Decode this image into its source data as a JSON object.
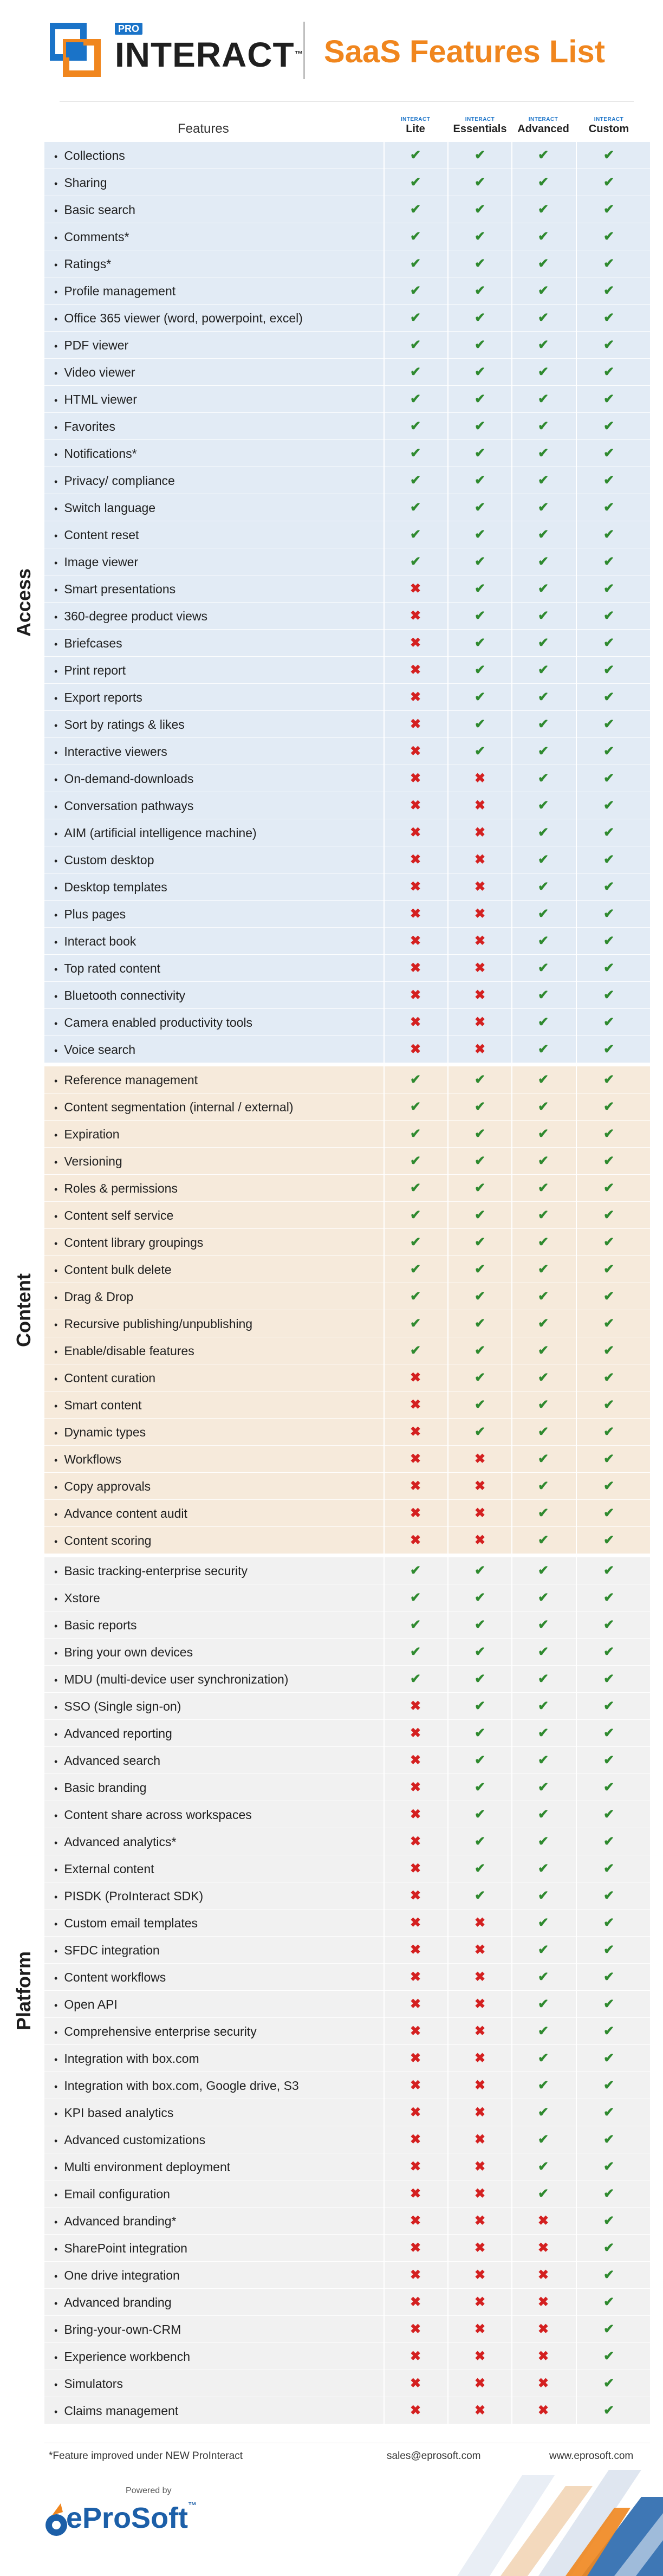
{
  "header": {
    "logo_badge": "PRO",
    "logo_text": "INTERACT",
    "logo_tm": "™",
    "title": "SaaS Features List"
  },
  "table": {
    "features_label": "Features",
    "tiers": [
      {
        "mini": "INTERACT",
        "name": "Lite"
      },
      {
        "mini": "INTERACT",
        "name": "Essentials"
      },
      {
        "mini": "INTERACT",
        "name": "Advanced"
      },
      {
        "mini": "INTERACT",
        "name": "Custom"
      }
    ],
    "marks": {
      "yes": "✔",
      "no": "✖"
    }
  },
  "sections": [
    {
      "label": "Access",
      "bg": "#e2ebf5",
      "rows": [
        {
          "f": "Collections",
          "v": [
            1,
            1,
            1,
            1
          ]
        },
        {
          "f": "Sharing",
          "v": [
            1,
            1,
            1,
            1
          ]
        },
        {
          "f": "Basic search",
          "v": [
            1,
            1,
            1,
            1
          ]
        },
        {
          "f": "Comments*",
          "v": [
            1,
            1,
            1,
            1
          ]
        },
        {
          "f": "Ratings*",
          "v": [
            1,
            1,
            1,
            1
          ]
        },
        {
          "f": "Profile management",
          "v": [
            1,
            1,
            1,
            1
          ]
        },
        {
          "f": "Office 365 viewer (word, powerpoint, excel)",
          "v": [
            1,
            1,
            1,
            1
          ]
        },
        {
          "f": "PDF viewer",
          "v": [
            1,
            1,
            1,
            1
          ]
        },
        {
          "f": "Video viewer",
          "v": [
            1,
            1,
            1,
            1
          ]
        },
        {
          "f": "HTML viewer",
          "v": [
            1,
            1,
            1,
            1
          ]
        },
        {
          "f": "Favorites",
          "v": [
            1,
            1,
            1,
            1
          ]
        },
        {
          "f": "Notifications*",
          "v": [
            1,
            1,
            1,
            1
          ]
        },
        {
          "f": "Privacy/ compliance",
          "v": [
            1,
            1,
            1,
            1
          ]
        },
        {
          "f": "Switch language",
          "v": [
            1,
            1,
            1,
            1
          ]
        },
        {
          "f": "Content reset",
          "v": [
            1,
            1,
            1,
            1
          ]
        },
        {
          "f": "Image viewer",
          "v": [
            1,
            1,
            1,
            1
          ]
        },
        {
          "f": "Smart presentations",
          "v": [
            0,
            1,
            1,
            1
          ]
        },
        {
          "f": "360-degree product views",
          "v": [
            0,
            1,
            1,
            1
          ]
        },
        {
          "f": "Briefcases",
          "v": [
            0,
            1,
            1,
            1
          ]
        },
        {
          "f": "Print report",
          "v": [
            0,
            1,
            1,
            1
          ]
        },
        {
          "f": "Export reports",
          "v": [
            0,
            1,
            1,
            1
          ]
        },
        {
          "f": "Sort by ratings & likes",
          "v": [
            0,
            1,
            1,
            1
          ]
        },
        {
          "f": "Interactive viewers",
          "v": [
            0,
            1,
            1,
            1
          ]
        },
        {
          "f": "On-demand-downloads",
          "v": [
            0,
            0,
            1,
            1
          ]
        },
        {
          "f": "Conversation pathways",
          "v": [
            0,
            0,
            1,
            1
          ]
        },
        {
          "f": "AIM (artificial intelligence machine)",
          "v": [
            0,
            0,
            1,
            1
          ]
        },
        {
          "f": "Custom desktop",
          "v": [
            0,
            0,
            1,
            1
          ]
        },
        {
          "f": "Desktop templates",
          "v": [
            0,
            0,
            1,
            1
          ]
        },
        {
          "f": "Plus pages",
          "v": [
            0,
            0,
            1,
            1
          ]
        },
        {
          "f": "Interact book",
          "v": [
            0,
            0,
            1,
            1
          ]
        },
        {
          "f": "Top rated content",
          "v": [
            0,
            0,
            1,
            1
          ]
        },
        {
          "f": "Bluetooth connectivity",
          "v": [
            0,
            0,
            1,
            1
          ]
        },
        {
          "f": "Camera enabled productivity tools",
          "v": [
            0,
            0,
            1,
            1
          ]
        },
        {
          "f": "Voice search",
          "v": [
            0,
            0,
            1,
            1
          ]
        }
      ]
    },
    {
      "label": "Content",
      "bg": "#f6eadb",
      "rows": [
        {
          "f": "Reference management",
          "v": [
            1,
            1,
            1,
            1
          ]
        },
        {
          "f": "Content segmentation (internal / external)",
          "v": [
            1,
            1,
            1,
            1
          ]
        },
        {
          "f": "Expiration",
          "v": [
            1,
            1,
            1,
            1
          ]
        },
        {
          "f": "Versioning",
          "v": [
            1,
            1,
            1,
            1
          ]
        },
        {
          "f": "Roles & permissions",
          "v": [
            1,
            1,
            1,
            1
          ]
        },
        {
          "f": "Content self service",
          "v": [
            1,
            1,
            1,
            1
          ]
        },
        {
          "f": "Content library groupings",
          "v": [
            1,
            1,
            1,
            1
          ]
        },
        {
          "f": "Content bulk delete",
          "v": [
            1,
            1,
            1,
            1
          ]
        },
        {
          "f": "Drag & Drop",
          "v": [
            1,
            1,
            1,
            1
          ]
        },
        {
          "f": "Recursive publishing/unpublishing",
          "v": [
            1,
            1,
            1,
            1
          ]
        },
        {
          "f": "Enable/disable features",
          "v": [
            1,
            1,
            1,
            1
          ]
        },
        {
          "f": "Content curation",
          "v": [
            0,
            1,
            1,
            1
          ]
        },
        {
          "f": "Smart content",
          "v": [
            0,
            1,
            1,
            1
          ]
        },
        {
          "f": "Dynamic types",
          "v": [
            0,
            1,
            1,
            1
          ]
        },
        {
          "f": "Workflows",
          "v": [
            0,
            0,
            1,
            1
          ]
        },
        {
          "f": "Copy approvals",
          "v": [
            0,
            0,
            1,
            1
          ]
        },
        {
          "f": "Advance content audit",
          "v": [
            0,
            0,
            1,
            1
          ]
        },
        {
          "f": "Content scoring",
          "v": [
            0,
            0,
            1,
            1
          ]
        }
      ]
    },
    {
      "label": "Platform",
      "bg": "#f1f1f1",
      "rows": [
        {
          "f": "Basic tracking-enterprise security",
          "v": [
            1,
            1,
            1,
            1
          ]
        },
        {
          "f": "Xstore",
          "v": [
            1,
            1,
            1,
            1
          ]
        },
        {
          "f": "Basic reports",
          "v": [
            1,
            1,
            1,
            1
          ]
        },
        {
          "f": "Bring your own devices",
          "v": [
            1,
            1,
            1,
            1
          ]
        },
        {
          "f": "MDU (multi-device user synchronization)",
          "v": [
            1,
            1,
            1,
            1
          ]
        },
        {
          "f": "SSO (Single sign-on)",
          "v": [
            0,
            1,
            1,
            1
          ]
        },
        {
          "f": "Advanced reporting",
          "v": [
            0,
            1,
            1,
            1
          ]
        },
        {
          "f": "Advanced search",
          "v": [
            0,
            1,
            1,
            1
          ]
        },
        {
          "f": "Basic branding",
          "v": [
            0,
            1,
            1,
            1
          ]
        },
        {
          "f": "Content share across workspaces",
          "v": [
            0,
            1,
            1,
            1
          ]
        },
        {
          "f": "Advanced analytics*",
          "v": [
            0,
            1,
            1,
            1
          ]
        },
        {
          "f": "External content",
          "v": [
            0,
            1,
            1,
            1
          ]
        },
        {
          "f": "PISDK (ProInteract SDK)",
          "v": [
            0,
            1,
            1,
            1
          ]
        },
        {
          "f": "Custom email templates",
          "v": [
            0,
            0,
            1,
            1
          ]
        },
        {
          "f": "SFDC integration",
          "v": [
            0,
            0,
            1,
            1
          ]
        },
        {
          "f": "Content workflows",
          "v": [
            0,
            0,
            1,
            1
          ]
        },
        {
          "f": "Open API",
          "v": [
            0,
            0,
            1,
            1
          ]
        },
        {
          "f": "Comprehensive enterprise security",
          "v": [
            0,
            0,
            1,
            1
          ]
        },
        {
          "f": "Integration with box.com",
          "v": [
            0,
            0,
            1,
            1
          ]
        },
        {
          "f": "Integration with box.com, Google drive, S3",
          "v": [
            0,
            0,
            1,
            1
          ]
        },
        {
          "f": "KPI based analytics",
          "v": [
            0,
            0,
            1,
            1
          ]
        },
        {
          "f": "Advanced customizations",
          "v": [
            0,
            0,
            1,
            1
          ]
        },
        {
          "f": "Multi environment deployment",
          "v": [
            0,
            0,
            1,
            1
          ]
        },
        {
          "f": "Email configuration",
          "v": [
            0,
            0,
            1,
            1
          ]
        },
        {
          "f": "Advanced branding*",
          "v": [
            0,
            0,
            0,
            1
          ]
        },
        {
          "f": "SharePoint integration",
          "v": [
            0,
            0,
            0,
            1
          ]
        },
        {
          "f": "One drive integration",
          "v": [
            0,
            0,
            0,
            1
          ]
        },
        {
          "f": "Advanced branding",
          "v": [
            0,
            0,
            0,
            1
          ]
        },
        {
          "f": "Bring-your-own-CRM",
          "v": [
            0,
            0,
            0,
            1
          ]
        },
        {
          "f": "Experience workbench",
          "v": [
            0,
            0,
            0,
            1
          ]
        },
        {
          "f": "Simulators",
          "v": [
            0,
            0,
            0,
            1
          ]
        },
        {
          "f": "Claims management",
          "v": [
            0,
            0,
            0,
            1
          ]
        }
      ]
    }
  ],
  "footer": {
    "footnote": "*Feature improved under NEW ProInteract",
    "email": "sales@eprosoft.com",
    "website": "www.eprosoft.com",
    "powered_by": "Powered by",
    "brand": "eProSoft",
    "brand_tm": "™"
  },
  "colors": {
    "accent_orange": "#f0861e",
    "brand_blue": "#1a73c8",
    "check_green": "#2f8a2f",
    "cross_red": "#d42020"
  }
}
